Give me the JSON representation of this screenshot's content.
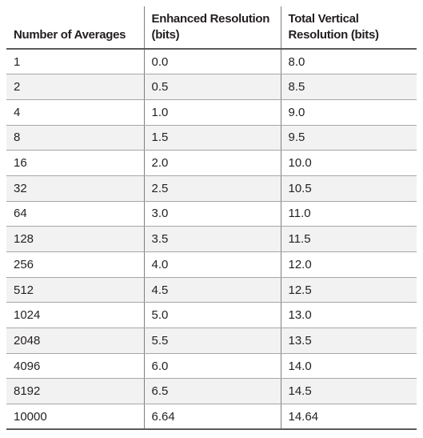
{
  "table": {
    "headers": [
      "Number of Averages",
      "Enhanced Resolution (bits)",
      "Total Vertical Resolution (bits)"
    ],
    "rows": [
      [
        "1",
        "0.0",
        "8.0"
      ],
      [
        "2",
        "0.5",
        "8.5"
      ],
      [
        "4",
        "1.0",
        "9.0"
      ],
      [
        "8",
        "1.5",
        "9.5"
      ],
      [
        "16",
        "2.0",
        "10.0"
      ],
      [
        "32",
        "2.5",
        "10.5"
      ],
      [
        "64",
        "3.0",
        "11.0"
      ],
      [
        "128",
        "3.5",
        "11.5"
      ],
      [
        "256",
        "4.0",
        "12.0"
      ],
      [
        "512",
        "4.5",
        "12.5"
      ],
      [
        "1024",
        "5.0",
        "13.0"
      ],
      [
        "2048",
        "5.5",
        "13.5"
      ],
      [
        "4096",
        "6.0",
        "14.0"
      ],
      [
        "8192",
        "6.5",
        "14.5"
      ],
      [
        "10000",
        "6.64",
        "14.64"
      ]
    ]
  },
  "colors": {
    "text": "#231f20",
    "row_stripe": "#f2f2f2",
    "rule": "#5b5b5b"
  }
}
